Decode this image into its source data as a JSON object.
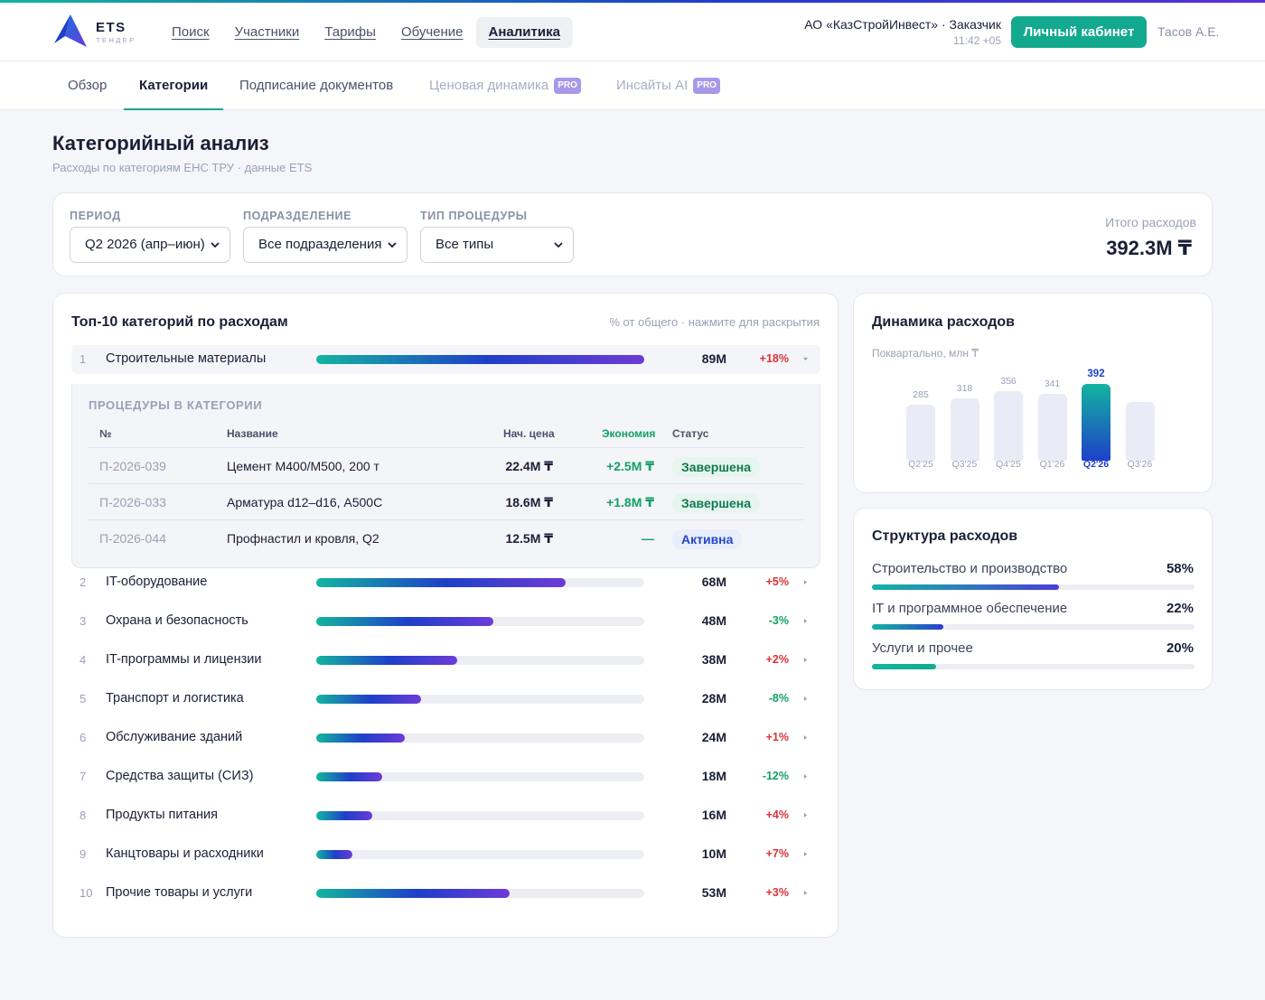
{
  "brand": {
    "name": "ETS",
    "tagline": "ТЕНДЕР"
  },
  "nav": [
    "Поиск",
    "Участники",
    "Тарифы",
    "Обучение",
    "Аналитика"
  ],
  "org": {
    "name": "АО «КазСтройИнвест» · Заказчик",
    "time": "11:42 +05"
  },
  "cabinet_button": "Личный кабинет",
  "user": "Тасов А.Е.",
  "tabs": [
    "Обзор",
    "Категории",
    "Подписание документов",
    "Ценовая динамика",
    "Инсайты AI"
  ],
  "pro_badge": "PRO",
  "page": {
    "title": "Категорийный анализ",
    "subtitle": "Расходы по категориям ЕНС ТРУ · данные ETS"
  },
  "filters": {
    "period": {
      "label": "ПЕРИОД",
      "value": "Q2 2026 (апр–июн)"
    },
    "department": {
      "label": "ПОДРАЗДЕЛЕНИЕ",
      "value": "Все подразделения"
    },
    "type": {
      "label": "ТИП ПРОЦЕДУРЫ",
      "value": "Все типы"
    }
  },
  "total": {
    "label": "Итого расходов",
    "value": "392.3М ₸"
  },
  "top10": {
    "title": "Топ-10 категорий по расходам",
    "hint": "% от общего · нажмите для раскрытия",
    "items": [
      {
        "n": "1",
        "name": "Строительные материалы",
        "share": 1.0,
        "value": "89М",
        "change": "+18%"
      },
      {
        "n": "2",
        "name": "IT-оборудование",
        "share": 0.76,
        "value": "68М",
        "change": "+5%"
      },
      {
        "n": "3",
        "name": "Охрана и безопасность",
        "share": 0.54,
        "value": "48М",
        "change": "-3%"
      },
      {
        "n": "4",
        "name": "IT-программы и лицензии",
        "share": 0.43,
        "value": "38М",
        "change": "+2%"
      },
      {
        "n": "5",
        "name": "Транспорт и логистика",
        "share": 0.32,
        "value": "28М",
        "change": "-8%"
      },
      {
        "n": "6",
        "name": "Обслуживание зданий",
        "share": 0.27,
        "value": "24М",
        "change": "+1%"
      },
      {
        "n": "7",
        "name": "Средства защиты (СИЗ)",
        "share": 0.2,
        "value": "18М",
        "change": "-12%"
      },
      {
        "n": "8",
        "name": "Продукты питания",
        "share": 0.17,
        "value": "16М",
        "change": "+4%"
      },
      {
        "n": "9",
        "name": "Канцтовары и расходники",
        "share": 0.11,
        "value": "10М",
        "change": "+7%"
      },
      {
        "n": "10",
        "name": "Прочие товары и услуги",
        "share": 0.59,
        "value": "53М",
        "change": "+3%"
      }
    ],
    "procedures": {
      "title": "ПРОЦЕДУРЫ В КАТЕГОРИИ",
      "headers": [
        "№",
        "Название",
        "Нач. цена",
        "Экономия",
        "Статус"
      ],
      "rows": [
        {
          "id": "П-2026-039",
          "name": "Цемент М400/М500, 200 т",
          "price": "22.4М ₸",
          "saving": "+2.5М ₸",
          "status": "Завершена"
        },
        {
          "id": "П-2026-033",
          "name": "Арматура d12–d16, А500С",
          "price": "18.6М ₸",
          "saving": "+1.8М ₸",
          "status": "Завершена"
        },
        {
          "id": "П-2026-044",
          "name": "Профнастил и кровля, Q2",
          "price": "12.5М ₸",
          "saving": "—",
          "status": "Активна"
        }
      ]
    }
  },
  "chart_data": {
    "type": "bar",
    "title": "Динамика расходов",
    "subtitle": "Поквартально, млн ₸",
    "categories": [
      "Q2'25",
      "Q3'25",
      "Q4'25",
      "Q1'26",
      "Q2'26",
      "Q3'26"
    ],
    "values": [
      285,
      318,
      356,
      341,
      392,
      null
    ],
    "highlight": "Q2'26"
  },
  "structure": {
    "title": "Структура расходов",
    "items": [
      {
        "label": "Строительство и производство",
        "pct": "58%",
        "value": 0.58,
        "color": "#4a3fd6"
      },
      {
        "label": "IT и программное обеспечение",
        "pct": "22%",
        "value": 0.22,
        "color": "#2a3fcf"
      },
      {
        "label": "Услуги и прочее",
        "pct": "20%",
        "value": 0.2,
        "color": "#13a98f"
      }
    ]
  }
}
